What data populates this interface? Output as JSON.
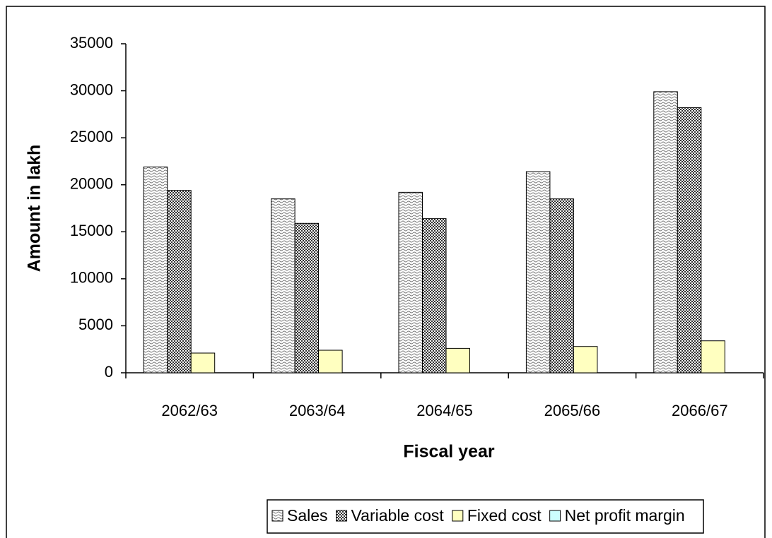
{
  "chart_data": {
    "type": "bar",
    "x_label": "Fiscal year",
    "y_label": "Amount in lakh",
    "categories": [
      "2062/63",
      "2063/64",
      "2064/65",
      "2065/66",
      "2066/67"
    ],
    "series": [
      {
        "name": "Sales",
        "color": "#d8d8d8",
        "values": [
          21900,
          18500,
          19200,
          21400,
          29900
        ]
      },
      {
        "name": "Variable cost",
        "color": "#7f7f7f",
        "values": [
          19400,
          15900,
          16400,
          18500,
          28200
        ]
      },
      {
        "name": "Fixed cost",
        "color": "#ffffc0",
        "values": [
          2100,
          2400,
          2600,
          2800,
          3400
        ]
      },
      {
        "name": "Net profit margin",
        "color": "#ccffff",
        "values": [
          null,
          null,
          null,
          null,
          null
        ]
      }
    ],
    "ylim": [
      0,
      35000
    ],
    "yticks": [
      0,
      5000,
      10000,
      15000,
      20000,
      25000,
      30000,
      35000
    ],
    "grid": false,
    "legend": "bottom"
  }
}
